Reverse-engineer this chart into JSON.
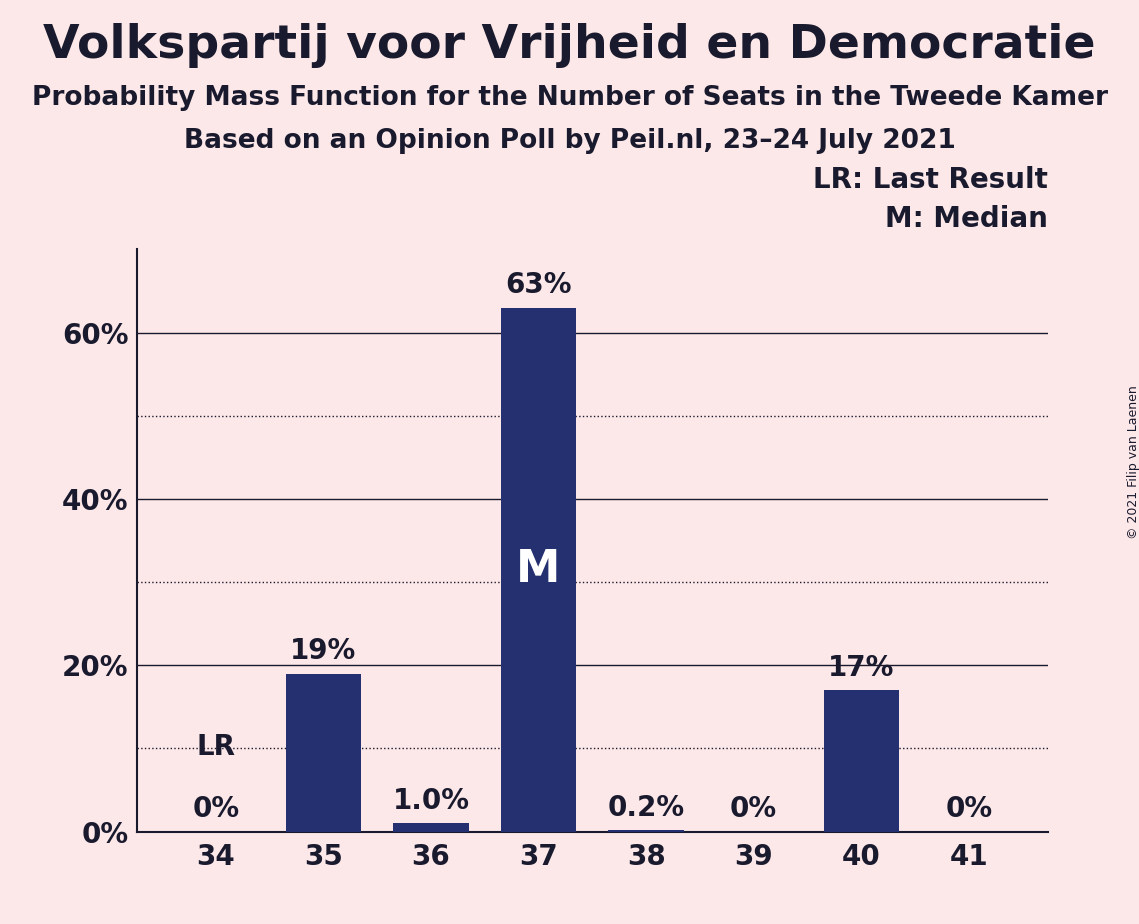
{
  "title": "Volkspartij voor Vrijheid en Democratie",
  "subtitle1": "Probability Mass Function for the Number of Seats in the Tweede Kamer",
  "subtitle2": "Based on an Opinion Poll by Peil.nl, 23–24 July 2021",
  "copyright": "© 2021 Filip van Laenen",
  "categories": [
    34,
    35,
    36,
    37,
    38,
    39,
    40,
    41
  ],
  "values": [
    0.0,
    19.0,
    1.0,
    63.0,
    0.2,
    0.0,
    17.0,
    0.0
  ],
  "bar_color": "#253070",
  "background_color": "#fce8e8",
  "bar_labels": [
    "0%",
    "19%",
    "1.0%",
    "63%",
    "0.2%",
    "0%",
    "17%",
    "0%"
  ],
  "lr_seat": 34,
  "median_seat": 37,
  "yticks": [
    0,
    20,
    40,
    60
  ],
  "ymax": 70,
  "legend_lr": "LR: Last Result",
  "legend_m": "M: Median",
  "title_fontsize": 34,
  "subtitle_fontsize": 19,
  "bar_label_fontsize": 20,
  "tick_fontsize": 20,
  "legend_fontsize": 20,
  "text_color": "#1a1a2e",
  "solid_grid": [
    20,
    40,
    60
  ],
  "dotted_grid": [
    10,
    30,
    50
  ],
  "median_label_fontsize": 32
}
